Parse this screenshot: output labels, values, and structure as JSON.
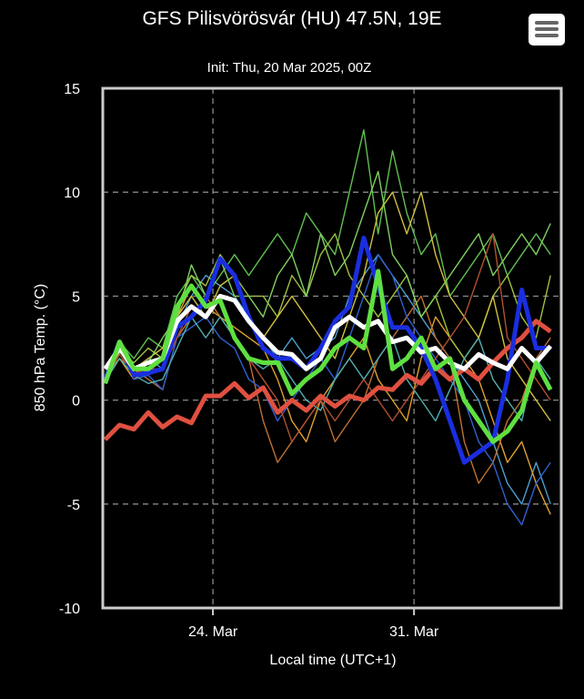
{
  "chart_data": {
    "type": "line",
    "title": "GFS Pilisvörösvár (HU) 47.5N, 19E",
    "subtitle": "Init: Thu, 20 Mar 2025, 00Z",
    "xlabel": "Local time (UTC+1)",
    "ylabel": "850 hPa Temp. (°C)",
    "ylim": [
      -10,
      15
    ],
    "yticks": [
      15,
      10,
      5,
      0,
      -5,
      -10
    ],
    "xlim": [
      "2025-03-20T04:00",
      "2025-04-05T03:00"
    ],
    "xticks": [
      {
        "x": "2025-03-24T00:00",
        "label": "24. Mar"
      },
      {
        "x": "2025-03-31T00:00",
        "label": "31. Mar"
      }
    ],
    "grid": true,
    "legend": "none",
    "series_start": "2025-03-20T06:00",
    "series_step_hours": 12,
    "members": [
      {
        "color": "#4aa0d0",
        "values": [
          1,
          2.5,
          1.2,
          2,
          1.5,
          3.5,
          5,
          6,
          5.5,
          5,
          4,
          3,
          2,
          3,
          2,
          2.5,
          3,
          5,
          6,
          7,
          6,
          5,
          4,
          3,
          2,
          1,
          0,
          -2,
          -4,
          -5,
          -3,
          -5
        ]
      },
      {
        "color": "#e0a030",
        "values": [
          1.2,
          2,
          1,
          1.5,
          2,
          4,
          5.5,
          4.5,
          4,
          3.5,
          3,
          2.5,
          1,
          -1,
          -2,
          0,
          1,
          2,
          3,
          1,
          0,
          -1,
          2,
          4,
          3,
          2,
          1,
          -1,
          -3,
          -2,
          -4,
          -5.5
        ]
      },
      {
        "color": "#60c050",
        "values": [
          0.8,
          2.8,
          2,
          3,
          2.5,
          5,
          6,
          5,
          6,
          7,
          6,
          7,
          8,
          7,
          9,
          8,
          7,
          10,
          13,
          8,
          12,
          9,
          7,
          8,
          5,
          6,
          7,
          8,
          6,
          7,
          8,
          7
        ]
      },
      {
        "color": "#c07030",
        "values": [
          1,
          2,
          1.5,
          1,
          0.5,
          3,
          4,
          5,
          4,
          3,
          2,
          -1,
          -3,
          -2,
          -1,
          0,
          -2,
          -1,
          0,
          2,
          3,
          4,
          5,
          3,
          2,
          -2,
          -4,
          -3,
          -1,
          0,
          2,
          3
        ]
      },
      {
        "color": "#3060d0",
        "values": [
          1.1,
          2.6,
          1,
          1.2,
          0.5,
          3,
          3.5,
          4,
          3,
          2.5,
          1,
          0.5,
          -1,
          0,
          1,
          2,
          1,
          3,
          5,
          7,
          6,
          4,
          3,
          2,
          1,
          0,
          -2,
          -3,
          -5,
          -6,
          -4,
          -3
        ]
      },
      {
        "color": "#a0c040",
        "values": [
          1,
          2.3,
          1.8,
          2.5,
          2,
          4.5,
          6,
          5.5,
          7,
          6,
          5,
          5,
          4,
          6,
          5,
          7,
          8,
          6,
          5,
          4,
          5,
          6,
          4,
          5,
          3,
          2,
          3,
          5,
          6,
          4,
          3,
          6
        ]
      },
      {
        "color": "#50b0b0",
        "values": [
          0.9,
          2,
          1.2,
          0.8,
          1,
          2.5,
          4,
          3,
          4,
          3,
          2,
          1.5,
          2,
          1,
          0,
          -0.5,
          1,
          2,
          1,
          2,
          3,
          1,
          0,
          -1,
          0.5,
          2,
          3,
          1,
          0,
          -1,
          2,
          1
        ]
      },
      {
        "color": "#d0c040",
        "values": [
          1,
          2.4,
          1.5,
          2,
          2.5,
          4,
          5,
          4,
          5.5,
          6,
          4,
          3,
          4,
          5,
          4,
          3,
          2,
          4,
          6,
          9,
          10,
          8,
          10,
          7,
          5,
          4,
          3,
          5,
          2,
          1,
          0,
          -1
        ]
      },
      {
        "color": "#80d060",
        "values": [
          1,
          2.7,
          1.6,
          1.8,
          3,
          4,
          6.5,
          5,
          6.8,
          5,
          5,
          4,
          6,
          7,
          5,
          8,
          6,
          7,
          9,
          11,
          7,
          6,
          4,
          5,
          6,
          7,
          8,
          6,
          7,
          8,
          7,
          8.5
        ]
      },
      {
        "color": "#b05030",
        "values": [
          1,
          2.2,
          1.3,
          1.5,
          1.5,
          3,
          4.5,
          4,
          5,
          3,
          2,
          1,
          0,
          -2,
          -1,
          0,
          -1,
          0,
          1,
          0,
          -1,
          0,
          1,
          2,
          3,
          4,
          6,
          8,
          3,
          2,
          1,
          0
        ]
      }
    ],
    "highlighted": [
      {
        "color": "#e05040",
        "values": [
          -1.9,
          -1.2,
          -1.4,
          -0.6,
          -1.3,
          -0.8,
          -1.1,
          0.2,
          0.2,
          0.8,
          0.1,
          0.6,
          -0.6,
          0,
          -0.5,
          0.2,
          -0.3,
          0.2,
          0,
          0.6,
          0.5,
          1.2,
          0.8,
          1.6,
          1.0,
          1.5,
          1.0,
          1.8,
          2.5,
          3.0,
          3.8,
          3.3
        ]
      },
      {
        "color": "#1a2ee0",
        "values": [
          1.0,
          2.8,
          1.2,
          1.3,
          1.5,
          3.5,
          4.0,
          4.8,
          6.8,
          6.0,
          4.0,
          2.5,
          2.0,
          2.0,
          1.5,
          2.5,
          3.8,
          4.5,
          7.8,
          5.5,
          3.5,
          3.5,
          2.5,
          1.0,
          -1.0,
          -3.0,
          -2.5,
          -2.0,
          1.0,
          5.3,
          2.5,
          2.5
        ]
      },
      {
        "color": "#ffffff",
        "values": [
          1.5,
          2.5,
          1.5,
          1.8,
          2.0,
          3.8,
          4.5,
          4.0,
          5.0,
          4.8,
          3.8,
          3.0,
          2.3,
          2.2,
          1.5,
          2.0,
          3.5,
          4.0,
          3.5,
          3.8,
          2.8,
          3.0,
          2.3,
          2.5,
          1.8,
          1.5,
          2.2,
          1.8,
          1.5,
          2.5,
          1.8,
          2.6
        ]
      },
      {
        "color": "#5ee040",
        "values": [
          0.8,
          2.8,
          1.5,
          1.5,
          2.0,
          4.5,
          5.5,
          4.5,
          4.8,
          3.0,
          2.0,
          1.8,
          1.8,
          0.3,
          1.0,
          1.5,
          2.5,
          3.0,
          2.5,
          6.2,
          1.5,
          2.0,
          3.0,
          1.5,
          2.0,
          0.0,
          -1.0,
          -2.0,
          -1.5,
          -0.5,
          1.8,
          0.5
        ]
      }
    ]
  },
  "menu": {
    "icon": "hamburger-menu-icon"
  }
}
